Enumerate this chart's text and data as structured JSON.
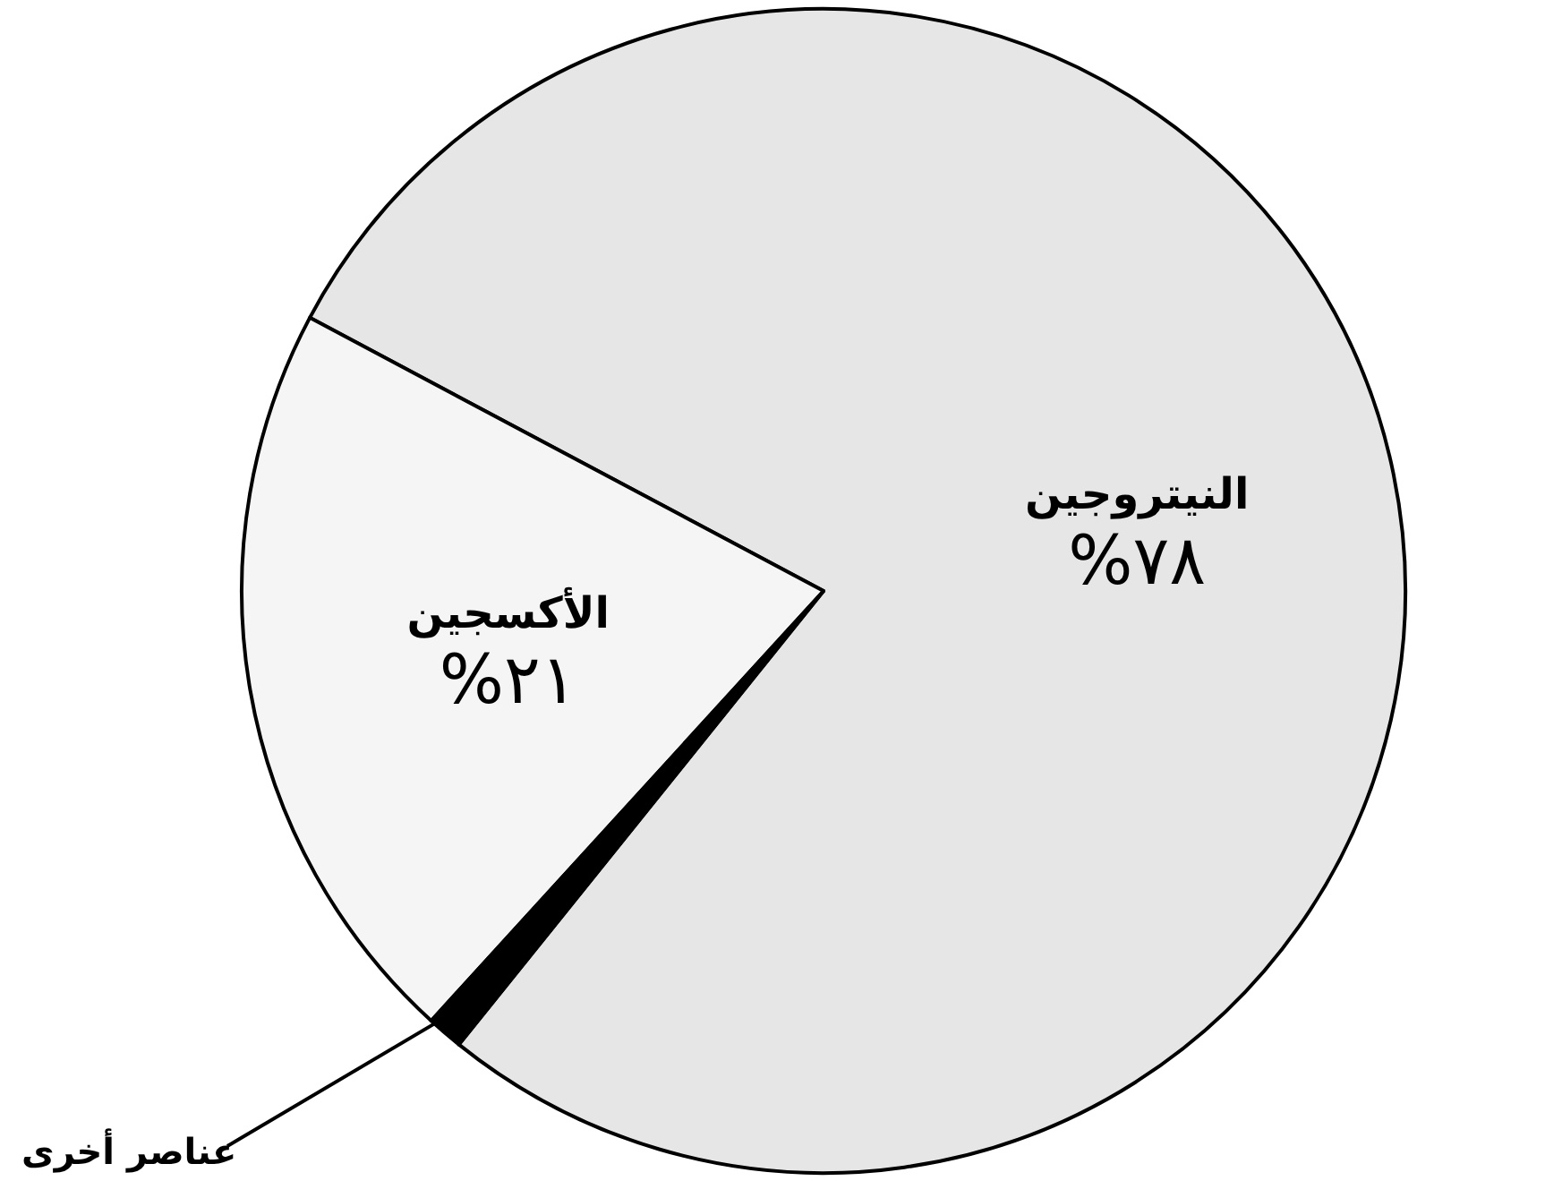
{
  "chart_data": {
    "type": "pie",
    "categories": [
      "النيتروجين",
      "الأكسجين",
      "عناصر أخرى"
    ],
    "values": [
      78,
      21,
      1
    ],
    "value_labels": [
      "%٧٨",
      "%٢١",
      null
    ],
    "colors": [
      "#e6e6e6",
      "#f5f5f5",
      "#000000"
    ]
  }
}
